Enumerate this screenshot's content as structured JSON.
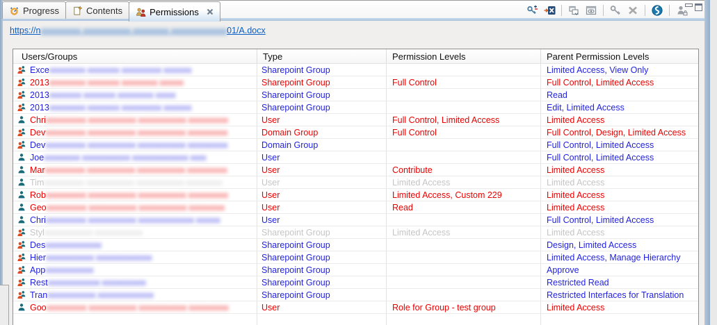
{
  "colors": {
    "blue": "#1f1fe0",
    "red": "#eb0000",
    "gray": "#c5c5c5",
    "link": "#0a5dc2",
    "frame_accent": "#a9c3dc",
    "group_icon_front": "#e0491f",
    "person_icon": "#1a6b7a"
  },
  "tabs": [
    {
      "label": "Progress",
      "icon": "progress-icon",
      "active": false
    },
    {
      "label": "Contents",
      "icon": "contents-icon",
      "active": false
    },
    {
      "label": "Permissions",
      "icon": "permissions-icon",
      "active": true,
      "closable": true
    }
  ],
  "toolbar": {
    "icons": [
      "add-remove-permission-icon",
      "export-to-excel-icon",
      "cascade-windows-icon",
      "watch-view-icon",
      "key-icon",
      "delete-icon",
      "synchronize-icon",
      "user-lock-icon"
    ],
    "window_controls": [
      "minimize-button",
      "maximize-button"
    ]
  },
  "url": {
    "prefix": "https://n",
    "redacted": "xxxxxxxxxx xxxxxxxxxxxx xxxxxxxxx xxxxxxxxxxxxxx",
    "suffix": "01/A.docx"
  },
  "table": {
    "columns": [
      "Users/Groups",
      "Type",
      "Permission Levels",
      "Parent Permission Levels"
    ],
    "rows": [
      {
        "name_prefix": "Exce",
        "redacted": "xxxxxxxxx xxxxxxxx xxxxxxxxxx xxxxxxx",
        "icon": "group",
        "color": "blue",
        "type": "Sharepoint Group",
        "permission_levels": "",
        "parent_permission_levels": "Limited Access, View Only"
      },
      {
        "name_prefix": "2013",
        "redacted": "xxxxxxxxx xxxxxxxx xxxxxxxxx xxxxxx",
        "icon": "group",
        "color": "red",
        "type": "Sharepoint Group",
        "permission_levels": "Full Control",
        "parent_permission_levels": "Full Control, Limited Access"
      },
      {
        "name_prefix": "2013",
        "redacted": "xxxxxxxx xxxxxxxx xxxxxxxxx xxxxx",
        "icon": "group",
        "color": "blue",
        "type": "Sharepoint Group",
        "permission_levels": "",
        "parent_permission_levels": "Read"
      },
      {
        "name_prefix": "2013",
        "redacted": "xxxxxxxxx xxxxxxxx xxxxxxxxxx xxxxxxx",
        "icon": "group",
        "color": "blue",
        "type": "Sharepoint Group",
        "permission_levels": "",
        "parent_permission_levels": "Edit, Limited Access"
      },
      {
        "name_prefix": "Chri",
        "redacted": "xxxxxxxxxx xxxxxxxxxxxx xxxxxxxxxxxx xxxxxxxxxx",
        "icon": "user",
        "color": "red",
        "type": "User",
        "permission_levels": "Full Control, Limited Access",
        "parent_permission_levels": "Limited Access"
      },
      {
        "name_prefix": "Dev",
        "redacted": "xxxxxxxxxx xxxxxxxxxxxx xxxxxxxxxxxx xxxxxxxxxx",
        "icon": "group",
        "color": "red",
        "type": "Domain Group",
        "permission_levels": "Full Control",
        "parent_permission_levels": "Full Control, Design, Limited Access"
      },
      {
        "name_prefix": "Dev",
        "redacted": "xxxxxxxxxx xxxxxxxxxxxx xxxxxxxxxxxx xxxxxxxxxx",
        "icon": "group",
        "color": "blue",
        "type": "Domain Group",
        "permission_levels": "",
        "parent_permission_levels": "Full Control, Limited Access"
      },
      {
        "name_prefix": "Joe",
        "redacted": "xxxxxxxxx xxxxxxxxxxxx xxxxxxxxxxxxxx xxxx",
        "icon": "user",
        "color": "blue",
        "type": "User",
        "permission_levels": "",
        "parent_permission_levels": "Full Control, Limited Access"
      },
      {
        "name_prefix": "Mar",
        "redacted": "xxxxxxxxxx xxxxxxxxxxxx xxxxxxxxxxxx xxxxxxxxxx",
        "icon": "user",
        "color": "red",
        "type": "User",
        "permission_levels": "Contribute",
        "parent_permission_levels": "Limited Access"
      },
      {
        "name_prefix": "Tim",
        "redacted": "xxxxxxxxxx xxxxxxxxxxxx xxxxxxxxxxxx xxxxxxxxx",
        "icon": "user",
        "color": "gray",
        "type": "User",
        "permission_levels": "Limited Access",
        "parent_permission_levels": "Limited Access"
      },
      {
        "name_prefix": "Rob",
        "redacted": "xxxxxxxxxx xxxxxxxxxxxx xxxxxxxxxxxx xxxxxxxxxx",
        "icon": "user",
        "color": "red",
        "type": "User",
        "permission_levels": "Limited Access, Custom 229",
        "parent_permission_levels": "Limited Access"
      },
      {
        "name_prefix": "Geo",
        "redacted": "xxxxxxxxxx xxxxxxxxxxxx xxxxxxxxxxxx xxxxxxxxx",
        "icon": "user",
        "color": "red",
        "type": "User",
        "permission_levels": "Read",
        "parent_permission_levels": "Limited Access"
      },
      {
        "name_prefix": "Chri",
        "redacted": "xxxxxxxxxx xxxxxxxxxxxx xxxxxxxxxxxxxx xxxxxx",
        "icon": "user",
        "color": "blue",
        "type": "User",
        "permission_levels": "",
        "parent_permission_levels": "Full Control, Limited Access"
      },
      {
        "name_prefix": "Styl",
        "redacted": "xxxxxxxxxxxx xxxxxxxxxxxx",
        "icon": "group",
        "color": "gray",
        "type": "Sharepoint Group",
        "permission_levels": "Limited Access",
        "parent_permission_levels": "Limited Access"
      },
      {
        "name_prefix": "Des",
        "redacted": "xxxxxxxxxxxxxx",
        "icon": "group",
        "color": "blue",
        "type": "Sharepoint Group",
        "permission_levels": "",
        "parent_permission_levels": "Design, Limited Access"
      },
      {
        "name_prefix": "Hier",
        "redacted": "xxxxxxxxxxxx xxxxxxxxxxxxxx",
        "icon": "group",
        "color": "blue",
        "type": "Sharepoint Group",
        "permission_levels": "",
        "parent_permission_levels": "Limited Access, Manage Hierarchy"
      },
      {
        "name_prefix": "App",
        "redacted": "xxxxxxxxxxxx",
        "icon": "group",
        "color": "blue",
        "type": "Sharepoint Group",
        "permission_levels": "",
        "parent_permission_levels": "Approve"
      },
      {
        "name_prefix": "Rest",
        "redacted": "xxxxxxxxxxxxx xxxxxxxxxxx",
        "icon": "group",
        "color": "blue",
        "type": "Sharepoint Group",
        "permission_levels": "",
        "parent_permission_levels": "Restricted Read"
      },
      {
        "name_prefix": "Tran",
        "redacted": "xxxxxxxxxxxx xxxxxxxxxxxxxx",
        "icon": "group",
        "color": "blue",
        "type": "Sharepoint Group",
        "permission_levels": "",
        "parent_permission_levels": "Restricted Interfaces for Translation"
      },
      {
        "name_prefix": "Goo",
        "redacted": "xxxxxxxxxx xxxxxxxxxxxx xxxxxxxxxxxx xxxxxxxxxx",
        "icon": "user",
        "color": "red",
        "type": "User",
        "permission_levels": "Role for Group - test group",
        "parent_permission_levels": "Limited Access"
      }
    ]
  }
}
